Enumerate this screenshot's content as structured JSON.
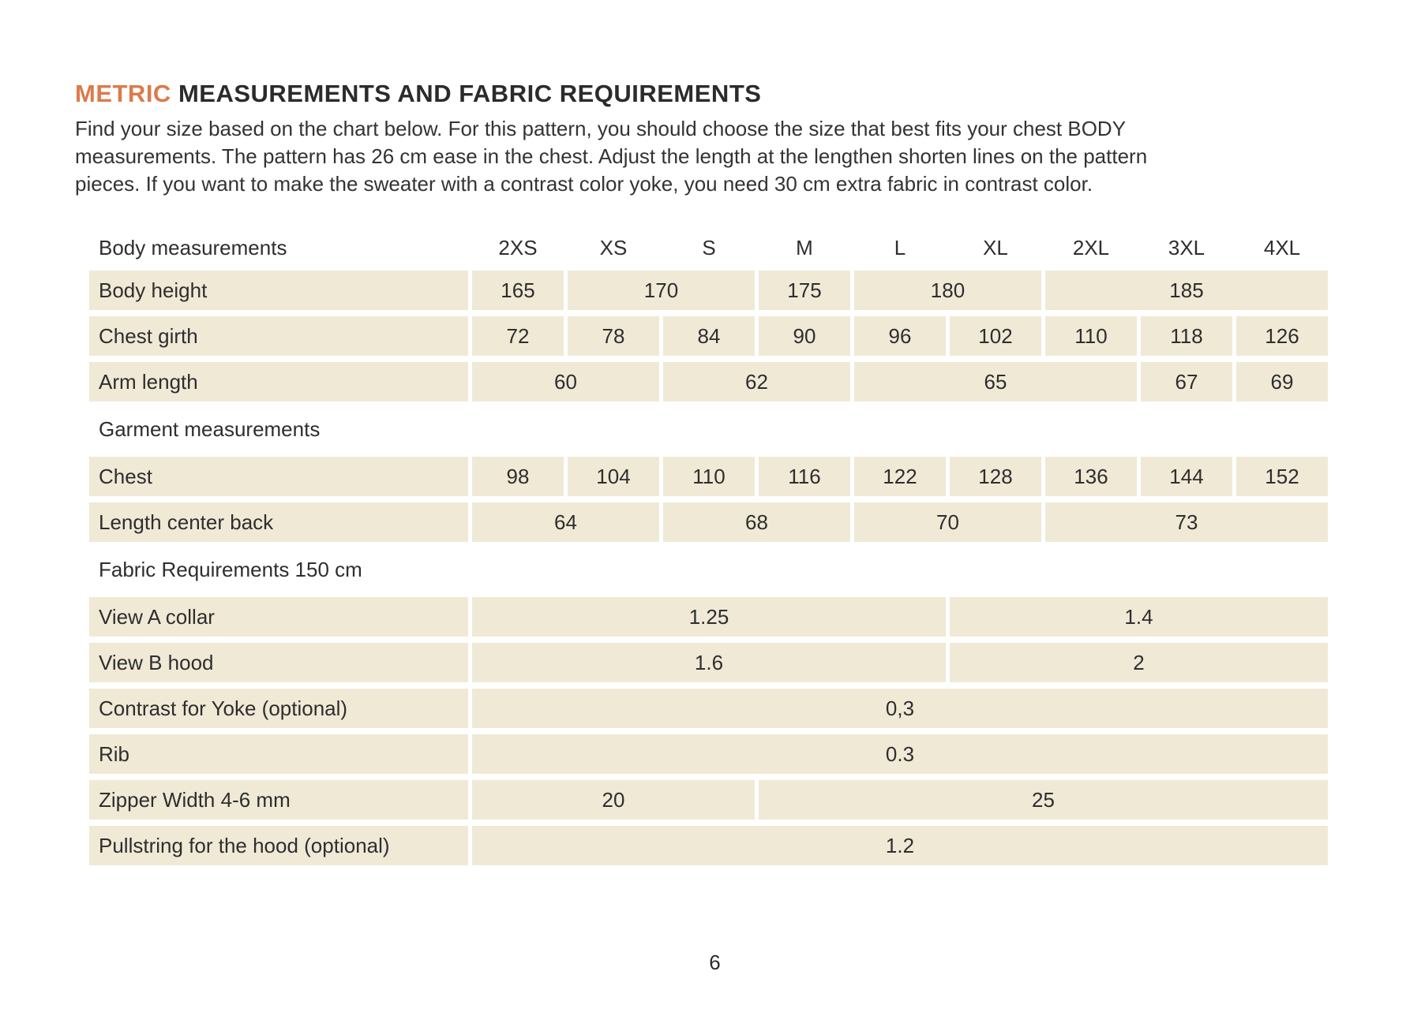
{
  "colors": {
    "accent_orange": "#dc7a4c",
    "cell_beige": "#f0e9d6",
    "text_dark": "#2e2e2e"
  },
  "header": {
    "title_highlight": "METRIC",
    "title_rest": " MEASUREMENTS AND FABRIC REQUIREMENTS"
  },
  "intro": {
    "lines": [
      "Find your size based on the chart below. For this pattern, you should choose the size that best fits your chest BODY",
      "measurements. The pattern has 26 cm ease in the chest. Adjust the length at the lengthen shorten lines on the pattern",
      "pieces. If you want to make the sweater with a contrast color yoke, you need 30 cm extra fabric in contrast color."
    ]
  },
  "table": {
    "rows": [
      {
        "type": "header",
        "label": "Body measurements",
        "cells": [
          {
            "value": "2XS",
            "span": 1
          },
          {
            "value": "XS",
            "span": 1
          },
          {
            "value": "S",
            "span": 1
          },
          {
            "value": "M",
            "span": 1
          },
          {
            "value": "L",
            "span": 1
          },
          {
            "value": "XL",
            "span": 1
          },
          {
            "value": "2XL",
            "span": 1
          },
          {
            "value": "3XL",
            "span": 1
          },
          {
            "value": "4XL",
            "span": 1
          }
        ]
      },
      {
        "type": "data",
        "label": "Body height",
        "cells": [
          {
            "value": "165",
            "span": 1
          },
          {
            "value": "170",
            "span": 2
          },
          {
            "value": "175",
            "span": 1
          },
          {
            "value": "180",
            "span": 2
          },
          {
            "value": "185",
            "span": 3
          }
        ]
      },
      {
        "type": "data",
        "label": "Chest girth",
        "cells": [
          {
            "value": "72",
            "span": 1
          },
          {
            "value": "78",
            "span": 1
          },
          {
            "value": "84",
            "span": 1
          },
          {
            "value": "90",
            "span": 1
          },
          {
            "value": "96",
            "span": 1
          },
          {
            "value": "102",
            "span": 1
          },
          {
            "value": "110",
            "span": 1
          },
          {
            "value": "118",
            "span": 1
          },
          {
            "value": "126",
            "span": 1
          }
        ]
      },
      {
        "type": "data",
        "label": "Arm length",
        "cells": [
          {
            "value": "60",
            "span": 2
          },
          {
            "value": "62",
            "span": 2
          },
          {
            "value": "65",
            "span": 3
          },
          {
            "value": "67",
            "span": 1
          },
          {
            "value": "69",
            "span": 1
          }
        ]
      },
      {
        "type": "section",
        "label": "Garment measurements"
      },
      {
        "type": "data",
        "label": "Chest",
        "cells": [
          {
            "value": "98",
            "span": 1
          },
          {
            "value": "104",
            "span": 1
          },
          {
            "value": "110",
            "span": 1
          },
          {
            "value": "116",
            "span": 1
          },
          {
            "value": "122",
            "span": 1
          },
          {
            "value": "128",
            "span": 1
          },
          {
            "value": "136",
            "span": 1
          },
          {
            "value": "144",
            "span": 1
          },
          {
            "value": "152",
            "span": 1
          }
        ]
      },
      {
        "type": "data",
        "label": "Length center back",
        "cells": [
          {
            "value": "64",
            "span": 2
          },
          {
            "value": "68",
            "span": 2
          },
          {
            "value": "70",
            "span": 2
          },
          {
            "value": "73",
            "span": 3
          }
        ]
      },
      {
        "type": "section",
        "label": "Fabric Requirements 150 cm"
      },
      {
        "type": "data",
        "label": "View A collar",
        "cells": [
          {
            "value": "1.25",
            "span": 5
          },
          {
            "value": "1.4",
            "span": 4
          }
        ]
      },
      {
        "type": "data",
        "label": "View B hood",
        "cells": [
          {
            "value": "1.6",
            "span": 5
          },
          {
            "value": "2",
            "span": 4
          }
        ]
      },
      {
        "type": "data",
        "label": "Contrast for Yoke (optional)",
        "cells": [
          {
            "value": "0,3",
            "span": 9
          }
        ]
      },
      {
        "type": "data",
        "label": "Rib",
        "cells": [
          {
            "value": "0.3",
            "span": 9
          }
        ]
      },
      {
        "type": "data",
        "label": "Zipper Width 4-6 mm",
        "cells": [
          {
            "value": "20",
            "span": 3
          },
          {
            "value": "25",
            "span": 6
          }
        ]
      },
      {
        "type": "data",
        "label": "Pullstring for the hood (optional)",
        "cells": [
          {
            "value": "1.2",
            "span": 9
          }
        ]
      }
    ]
  },
  "footer": {
    "page_number": "6"
  }
}
